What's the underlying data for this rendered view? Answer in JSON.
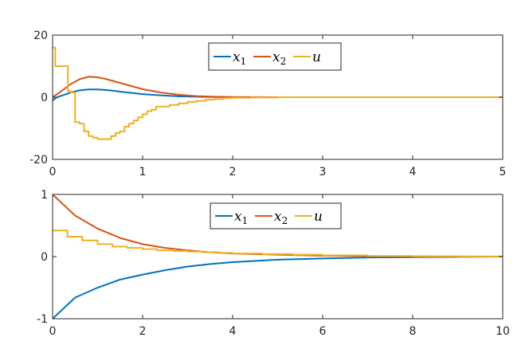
{
  "chart_data": [
    {
      "type": "line",
      "title": "",
      "xlabel": "",
      "ylabel": "",
      "xlim": [
        0,
        5
      ],
      "ylim": [
        -20,
        20
      ],
      "xticks": [
        0,
        1,
        2,
        3,
        4,
        5
      ],
      "yticks": [
        -20,
        0,
        20
      ],
      "grid": false,
      "legend_position": "top-center",
      "series": [
        {
          "name": "x1",
          "color": "#0072BD",
          "step": false,
          "points": [
            [
              0,
              -1
            ],
            [
              0.05,
              0
            ],
            [
              0.1,
              0.5
            ],
            [
              0.2,
              1.5
            ],
            [
              0.3,
              2.2
            ],
            [
              0.4,
              2.5
            ],
            [
              0.5,
              2.5
            ],
            [
              0.6,
              2.3
            ],
            [
              0.7,
              2.0
            ],
            [
              0.8,
              1.6
            ],
            [
              0.9,
              1.3
            ],
            [
              1.0,
              1.0
            ],
            [
              1.2,
              0.6
            ],
            [
              1.4,
              0.3
            ],
            [
              1.6,
              0.15
            ],
            [
              1.8,
              0.05
            ],
            [
              2.0,
              0
            ],
            [
              2.5,
              0
            ],
            [
              3,
              0
            ],
            [
              4,
              0
            ],
            [
              5,
              0
            ]
          ]
        },
        {
          "name": "x2",
          "color": "#D95319",
          "step": false,
          "points": [
            [
              0,
              0
            ],
            [
              0.1,
              2
            ],
            [
              0.2,
              4.2
            ],
            [
              0.3,
              5.8
            ],
            [
              0.4,
              6.6
            ],
            [
              0.5,
              6.4
            ],
            [
              0.6,
              5.8
            ],
            [
              0.7,
              5.0
            ],
            [
              0.8,
              4.2
            ],
            [
              0.9,
              3.4
            ],
            [
              1.0,
              2.6
            ],
            [
              1.2,
              1.5
            ],
            [
              1.4,
              0.8
            ],
            [
              1.6,
              0.35
            ],
            [
              1.8,
              0.15
            ],
            [
              2.0,
              0.05
            ],
            [
              2.5,
              0
            ],
            [
              3,
              0
            ],
            [
              4,
              0
            ],
            [
              5,
              0
            ]
          ]
        },
        {
          "name": "u",
          "color": "#EDB120",
          "step": true,
          "points": [
            [
              0,
              16
            ],
            [
              0.03,
              10
            ],
            [
              0.08,
              10
            ],
            [
              0.12,
              10
            ],
            [
              0.17,
              2
            ],
            [
              0.2,
              1.5
            ],
            [
              0.25,
              -8
            ],
            [
              0.3,
              -8.5
            ],
            [
              0.35,
              -11
            ],
            [
              0.4,
              -12.5
            ],
            [
              0.45,
              -13
            ],
            [
              0.5,
              -13.5
            ],
            [
              0.55,
              -13.5
            ],
            [
              0.6,
              -13.5
            ],
            [
              0.65,
              -12.5
            ],
            [
              0.7,
              -11.5
            ],
            [
              0.75,
              -11
            ],
            [
              0.8,
              -9.5
            ],
            [
              0.85,
              -8.5
            ],
            [
              0.9,
              -7.5
            ],
            [
              0.95,
              -6.5
            ],
            [
              1.0,
              -5.5
            ],
            [
              1.05,
              -4.5
            ],
            [
              1.1,
              -4
            ],
            [
              1.15,
              -3
            ],
            [
              1.2,
              -3
            ],
            [
              1.3,
              -2.5
            ],
            [
              1.4,
              -2
            ],
            [
              1.5,
              -1.5
            ],
            [
              1.6,
              -1.2
            ],
            [
              1.7,
              -0.8
            ],
            [
              1.8,
              -0.6
            ],
            [
              1.9,
              -0.3
            ],
            [
              2.0,
              -0.2
            ],
            [
              2.2,
              -0.1
            ],
            [
              2.5,
              0
            ],
            [
              3,
              0
            ],
            [
              4,
              0
            ],
            [
              5,
              0
            ]
          ]
        }
      ]
    },
    {
      "type": "line",
      "title": "",
      "xlabel": "",
      "ylabel": "",
      "xlim": [
        0,
        10
      ],
      "ylim": [
        -1,
        1
      ],
      "xticks": [
        0,
        2,
        4,
        6,
        8,
        10
      ],
      "yticks": [
        -1,
        0,
        1
      ],
      "grid": false,
      "legend_position": "top-center",
      "series": [
        {
          "name": "x1",
          "color": "#0072BD",
          "step": false,
          "points": [
            [
              0,
              -1
            ],
            [
              0.5,
              -0.66
            ],
            [
              1,
              -0.5
            ],
            [
              1.5,
              -0.37
            ],
            [
              2,
              -0.29
            ],
            [
              2.5,
              -0.22
            ],
            [
              3,
              -0.16
            ],
            [
              3.5,
              -0.12
            ],
            [
              4,
              -0.09
            ],
            [
              5,
              -0.05
            ],
            [
              6,
              -0.03
            ],
            [
              7,
              -0.015
            ],
            [
              8,
              -0.01
            ],
            [
              9,
              -0.005
            ],
            [
              10,
              0
            ]
          ]
        },
        {
          "name": "x2",
          "color": "#D95319",
          "step": false,
          "points": [
            [
              0,
              1
            ],
            [
              0.5,
              0.66
            ],
            [
              1,
              0.45
            ],
            [
              1.5,
              0.3
            ],
            [
              2,
              0.2
            ],
            [
              2.5,
              0.14
            ],
            [
              3,
              0.1
            ],
            [
              3.5,
              0.07
            ],
            [
              4,
              0.05
            ],
            [
              5,
              0.03
            ],
            [
              6,
              0.015
            ],
            [
              7,
              0.008
            ],
            [
              8,
              0.004
            ],
            [
              9,
              0.002
            ],
            [
              10,
              0
            ]
          ]
        },
        {
          "name": "u",
          "color": "#EDB120",
          "step": true,
          "points": [
            [
              0,
              0.42
            ],
            [
              0.33,
              0.32
            ],
            [
              0.66,
              0.26
            ],
            [
              1.0,
              0.2
            ],
            [
              1.33,
              0.16
            ],
            [
              1.66,
              0.14
            ],
            [
              2.0,
              0.12
            ],
            [
              2.33,
              0.1
            ],
            [
              2.66,
              0.09
            ],
            [
              3.0,
              0.08
            ],
            [
              3.33,
              0.07
            ],
            [
              3.66,
              0.06
            ],
            [
              4.0,
              0.05
            ],
            [
              4.66,
              0.04
            ],
            [
              5.33,
              0.03
            ],
            [
              6.0,
              0.02
            ],
            [
              7.0,
              0.01
            ],
            [
              8.0,
              0.005
            ],
            [
              9.0,
              0.002
            ],
            [
              10,
              0
            ]
          ]
        }
      ]
    }
  ]
}
